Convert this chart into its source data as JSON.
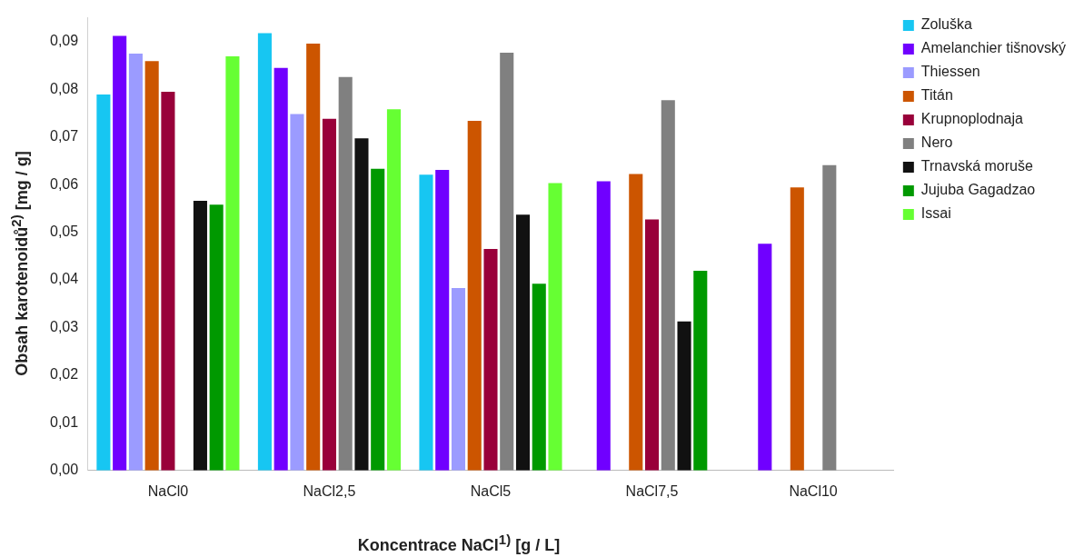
{
  "chart_data": {
    "type": "bar",
    "xlabel": "Koncentrace NaCl$^{1)}$ [g / L]",
    "ylabel": "Obsah karotenoidů$^{2)}$ [mg / g]",
    "categories": [
      "NaCl0",
      "NaCl2,5",
      "NaCl5",
      "NaCl7,5",
      "NaCl10"
    ],
    "series": [
      {
        "name": "Zoluška",
        "color": "#17c6f2",
        "values": [
          0.0789,
          0.0918,
          0.0621,
          null,
          null
        ]
      },
      {
        "name": "Amelanchier tišnovský",
        "color": "#7000ff",
        "values": [
          0.0912,
          0.0845,
          0.0631,
          0.0607,
          0.0476
        ]
      },
      {
        "name": "Thiessen",
        "color": "#9b9bff",
        "values": [
          0.0875,
          0.0748,
          0.0383,
          null,
          null
        ]
      },
      {
        "name": "Titán",
        "color": "#cc5500",
        "values": [
          0.0859,
          0.0896,
          0.0734,
          0.0622,
          0.0594
        ]
      },
      {
        "name": "Krupnoplodnaja",
        "color": "#99003a",
        "values": [
          0.0795,
          0.0738,
          0.0465,
          0.0527,
          null
        ]
      },
      {
        "name": "Nero",
        "color": "#808080",
        "values": [
          null,
          0.0826,
          0.0877,
          0.0777,
          0.0641
        ]
      },
      {
        "name": "Trnavská moruše",
        "color": "#111111",
        "values": [
          0.0566,
          0.0697,
          0.0537,
          0.0313,
          null
        ]
      },
      {
        "name": "Jujuba Gagadzao",
        "color": "#009900",
        "values": [
          0.0558,
          0.0633,
          0.0392,
          0.0419,
          null
        ]
      },
      {
        "name": "Issai",
        "color": "#66ff33",
        "values": [
          0.0869,
          0.0758,
          0.0603,
          null,
          null
        ]
      }
    ],
    "ylim": [
      0,
      0.095
    ],
    "yticks": [
      {
        "value": 0,
        "label": "0,00"
      },
      {
        "value": 0.01,
        "label": "0,01"
      },
      {
        "value": 0.02,
        "label": "0,02"
      },
      {
        "value": 0.03,
        "label": "0,03"
      },
      {
        "value": 0.04,
        "label": "0,04"
      },
      {
        "value": 0.05,
        "label": "0,05"
      },
      {
        "value": 0.06,
        "label": "0,06"
      },
      {
        "value": 0.07,
        "label": "0,07"
      },
      {
        "value": 0.08,
        "label": "0,08"
      },
      {
        "value": 0.09,
        "label": "0,09"
      }
    ],
    "grid": false,
    "legend": "top right"
  }
}
